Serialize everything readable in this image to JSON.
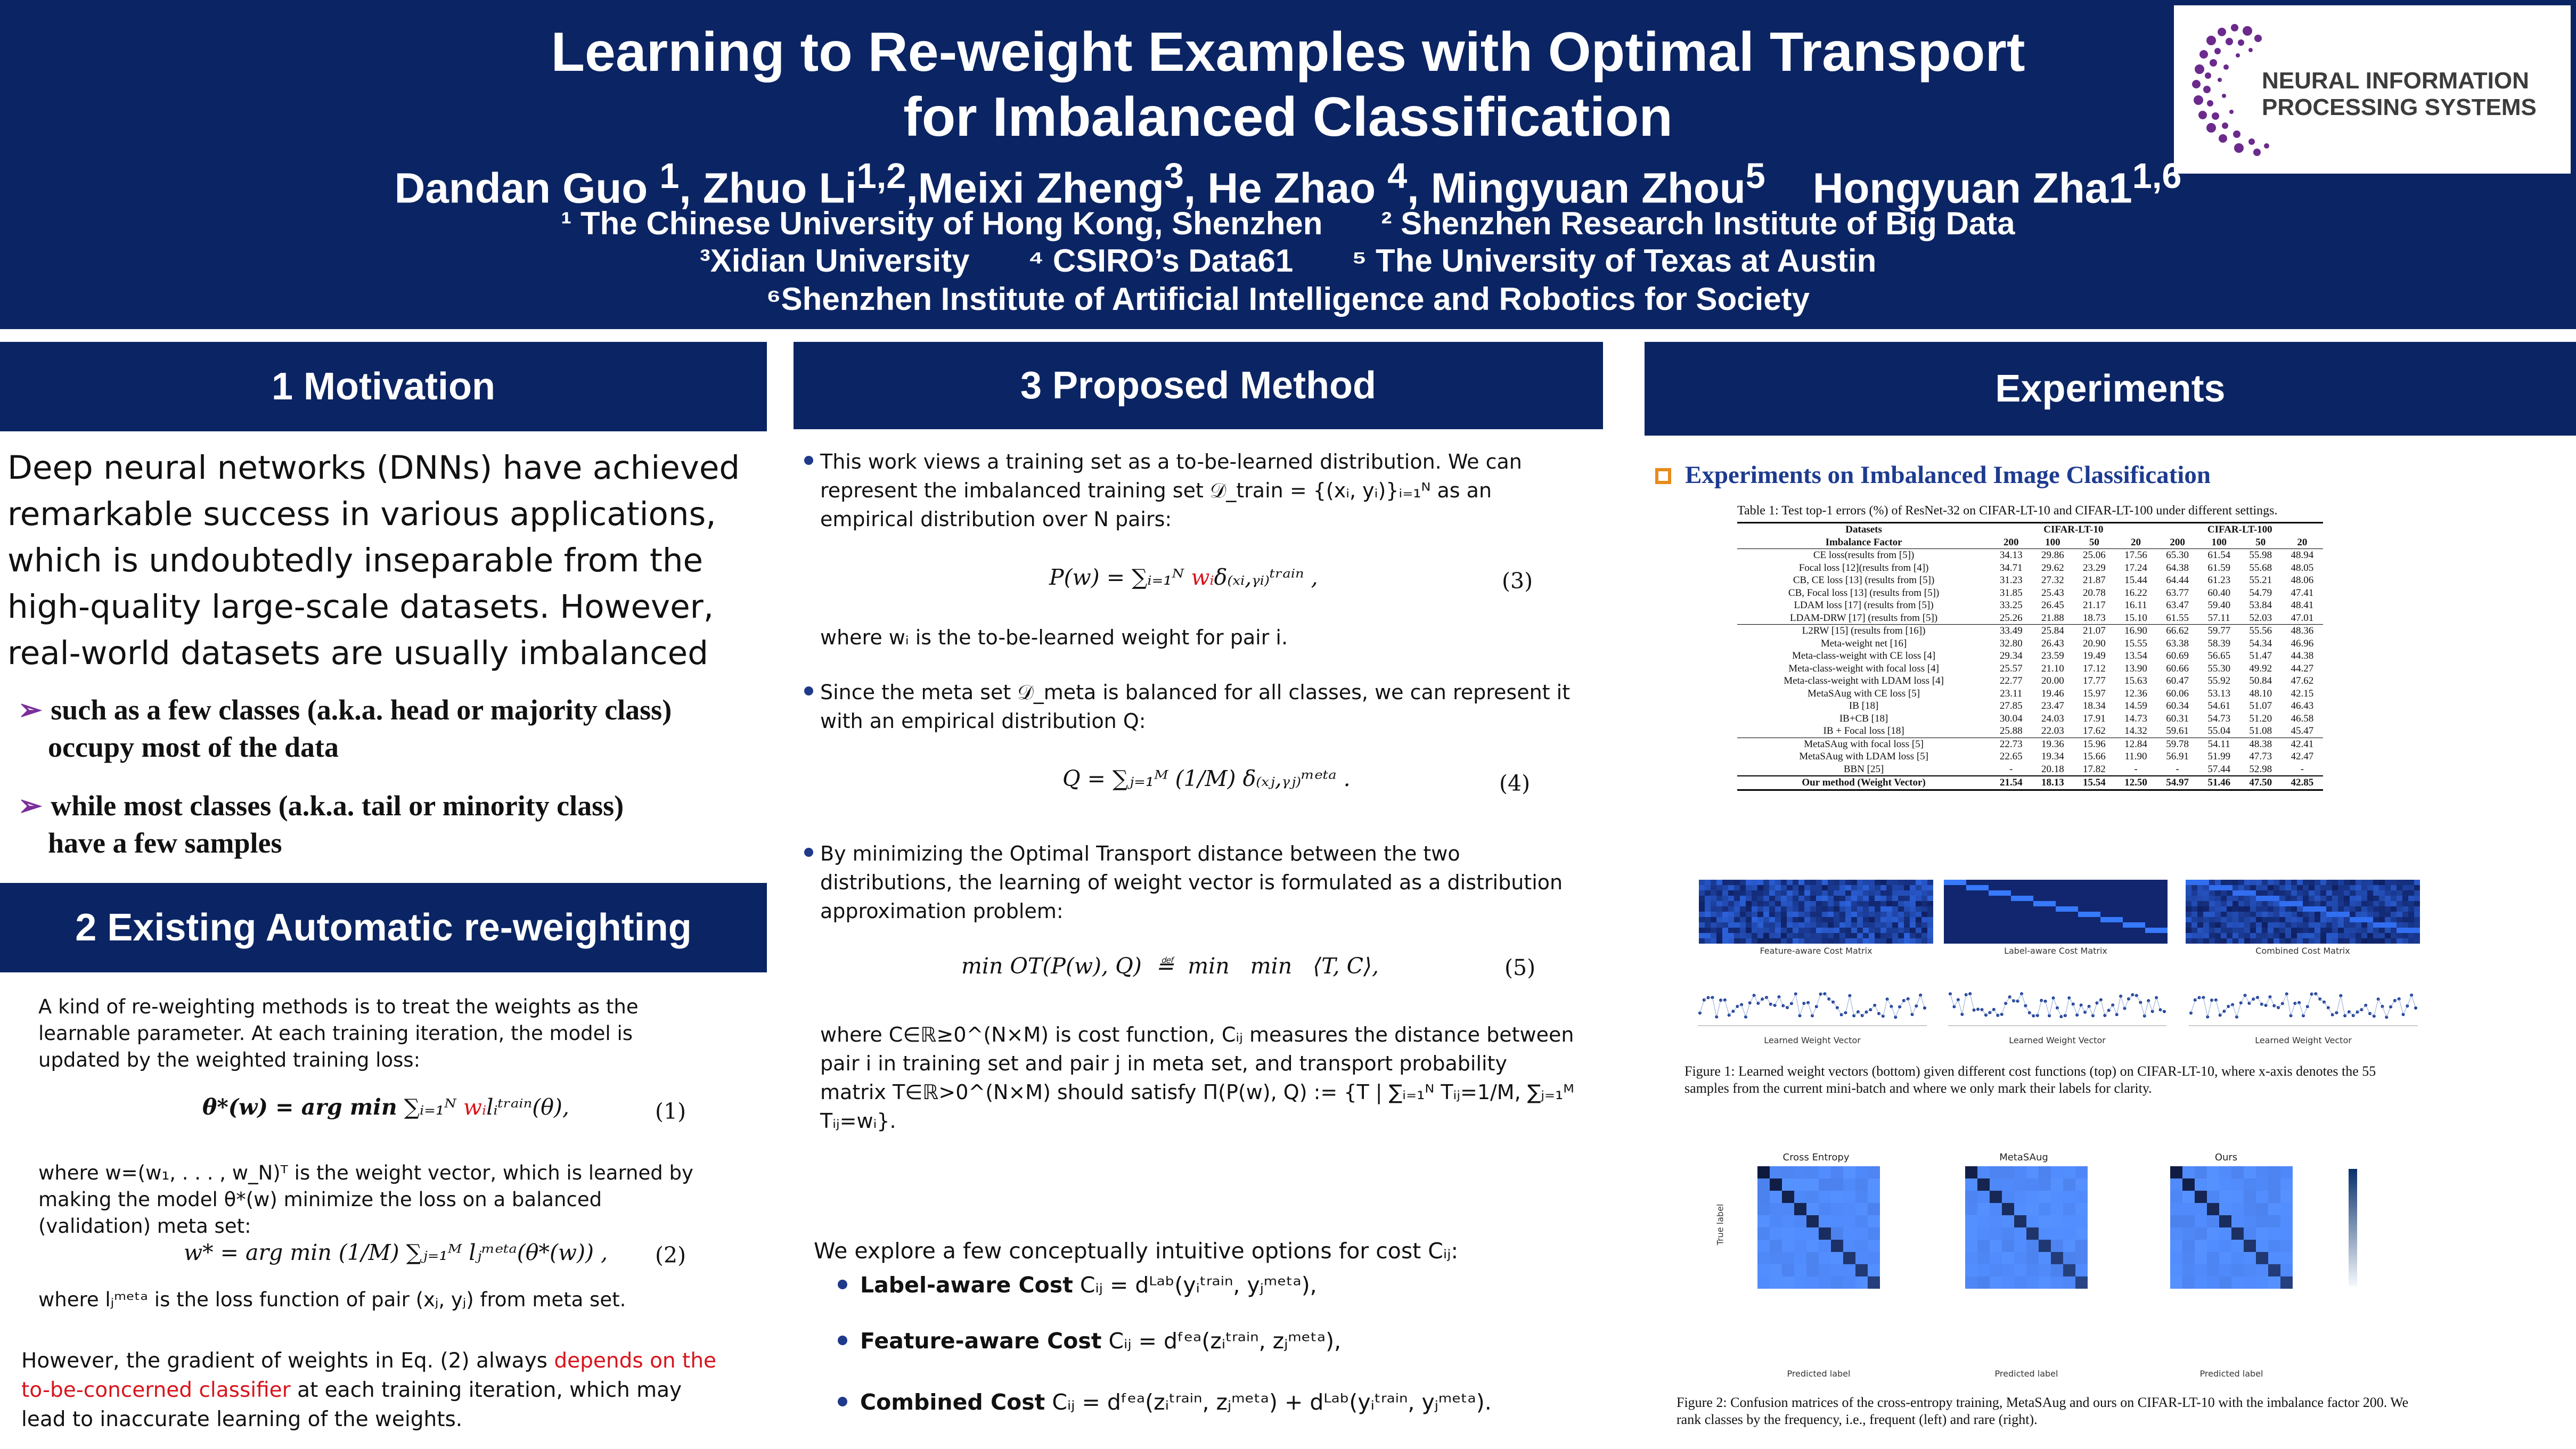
{
  "header": {
    "title_line1": "Learning to Re-weight Examples with Optimal Transport",
    "title_line2": "for Imbalanced Classification",
    "authors": [
      {
        "name": "Dandan Guo ",
        "sup": "1"
      },
      {
        "name": ", Zhuo Li",
        "sup": "1,2"
      },
      {
        "name": ",Meixi Zheng",
        "sup": "3"
      },
      {
        "name": ", He Zhao ",
        "sup": "4"
      },
      {
        "name": ", Mingyuan Zhou",
        "sup": "5"
      },
      {
        "name": "    Hongyuan Zha1",
        "sup": "1,6"
      }
    ],
    "affiliations": {
      "a1": "¹ The Chinese University of Hong Kong, Shenzhen",
      "a2": "² Shenzhen Research Institute of Big Data",
      "a3": "³Xidian University",
      "a4": "⁴ CSIRO’s Data61",
      "a5": "⁵ The University of Texas at Austin",
      "a6": "⁶Shenzhen Institute of Artificial Intelligence and Robotics for Society"
    },
    "logo_line1": "NEURAL INFORMATION",
    "logo_line2": "PROCESSING SYSTEMS",
    "colors": {
      "header_bg": "#0b2463",
      "logo_purple": "#6b2a8c",
      "highlight_red": "#d8141b",
      "bullet_blue": "#1f3a8a",
      "arrow_purple": "#7a2d9b",
      "subheading_orange": "#e88b1a"
    }
  },
  "motivation": {
    "heading": "1 Motivation",
    "paragraph": "Deep neural networks (DNNs) have achieved remarkable success in various applications, which is undoubtedly inseparable from the high-quality large-scale datasets. However, real-world datasets are usually imbalanced",
    "bullet1_line1": "such as a few classes (a.k.a. head or majority class)",
    "bullet1_line2": "occupy most of the data",
    "bullet2_line1": "while most classes (a.k.a. tail or minority class)",
    "bullet2_line2": "have a few samples"
  },
  "existing": {
    "heading": "2 Existing Automatic re-weighting",
    "para1": "A kind of re-weighting methods is to treat the weights as the learnable parameter. At each training iteration, the model is updated by the weighted training loss:",
    "eq1_left": "θ*(w) = arg min",
    "eq1_right": " ∑ᵢ₌₁ᴺ ",
    "eq1_w": "wᵢ",
    "eq1_tail": "lᵢᵗʳᵃⁱⁿ(θ),",
    "eq1_num": "(1)",
    "para2": "where w=(w₁, . . . , w_N)ᵀ is the weight vector, which is learned by making the model θ*(w) minimize the loss on a balanced (validation) meta set:",
    "eq2": "w* = arg min  (1/M) ∑ⱼ₌₁ᴹ lⱼᵐᵉᵗᵃ(θ*(w)) ,",
    "eq2_num": "(2)",
    "para3": "where lⱼᵐᵉᵗᵃ is the loss function of pair (xⱼ, yⱼ) from meta set.",
    "para4_a": "However, the gradient of weights in Eq. (2) always ",
    "para4_red": "depends on the to-be-concerned classifier",
    "para4_b": " at each training iteration, which may lead to inaccurate learning of the weights."
  },
  "method": {
    "heading": "3  Proposed Method",
    "b1": "This work views a training set as a to-be-learned distribution. We can represent the imbalanced training set 𝒟_train = {(xᵢ, yᵢ)}ᵢ₌₁ᴺ as an empirical distribution over N pairs:",
    "eq3_a": "P(w) = ∑ᵢ₌₁ᴺ ",
    "eq3_w": "wᵢ",
    "eq3_b": "δ₍ₓᵢ,ᵧᵢ₎ᵗʳᵃⁱⁿ ,",
    "eq3_num": "(3)",
    "b1b": "where wᵢ is the to-be-learned weight for pair i.",
    "b2": "Since the meta set 𝒟_meta  is balanced for all classes, we can represent it with an empirical distribution Q:",
    "eq4": "Q = ∑ⱼ₌₁ᴹ (1/M) δ₍ₓⱼ,ᵧⱼ₎ᵐᵉᵗᵃ .",
    "eq4_num": "(4)",
    "b3": "By minimizing the Optimal Transport distance between the two distributions, the learning of weight vector is formulated as a distribution approximation problem:",
    "eq5": "min OT(P(w), Q)  ≝  min   min   ⟨T, C⟩,",
    "eq5_num": "(5)",
    "b3b": "where C∈ℝ≥0^(N×M) is cost function, Cᵢⱼ measures the distance between pair i in training set and pair j in meta set, and transport probability matrix T∈ℝ>0^(N×M) should satisfy Π(P(w), Q) := {T | ∑ᵢ₌₁ᴺ Tᵢⱼ=1/M, ∑ⱼ₌₁ᴹ Tᵢⱼ=wᵢ}.",
    "explore": "We explore a few conceptually intuitive options for cost Cᵢⱼ:",
    "opt1_name": "Label-aware Cost",
    "opt1_eq": "Cᵢⱼ = dᴸᵃᵇ(yᵢᵗʳᵃⁱⁿ, yⱼᵐᵉᵗᵃ),",
    "opt2_name": "Feature-aware Cost",
    "opt2_eq": "Cᵢⱼ = dᶠᵉᵃ(zᵢᵗʳᵃⁱⁿ, zⱼᵐᵉᵗᵃ),",
    "opt3_name": "Combined Cost",
    "opt3_eq": "Cᵢⱼ = dᶠᵉᵃ(zᵢᵗʳᵃⁱⁿ, zⱼᵐᵉᵗᵃ) + dᴸᵃᵇ(yᵢᵗʳᵃⁱⁿ, yⱼᵐᵉᵗᵃ)."
  },
  "experiments": {
    "heading": "Experiments",
    "subheading": "Experiments on Imbalanced Image Classification",
    "table_caption": "Table 1: Test top-1 errors (%) of ResNet-32 on CIFAR-LT-10 and CIFAR-LT-100 under different settings.",
    "table_header1": [
      "Datasets",
      "CIFAR-LT-10",
      "CIFAR-LT-100"
    ],
    "table_header2": [
      "Imbalance Factor",
      "200",
      "100",
      "50",
      "20",
      "200",
      "100",
      "50",
      "20"
    ],
    "table_rows": [
      [
        "CE loss(results from [5])",
        "34.13",
        "29.86",
        "25.06",
        "17.56",
        "65.30",
        "61.54",
        "55.98",
        "48.94"
      ],
      [
        "Focal loss [12](results from [4])",
        "34.71",
        "29.62",
        "23.29",
        "17.24",
        "64.38",
        "61.59",
        "55.68",
        "48.05"
      ],
      [
        "CB, CE loss [13] (results from [5])",
        "31.23",
        "27.32",
        "21.87",
        "15.44",
        "64.44",
        "61.23",
        "55.21",
        "48.06"
      ],
      [
        "CB, Focal loss [13] (results from [5])",
        "31.85",
        "25.43",
        "20.78",
        "16.22",
        "63.77",
        "60.40",
        "54.79",
        "47.41"
      ],
      [
        "LDAM loss [17] (results from [5])",
        "33.25",
        "26.45",
        "21.17",
        "16.11",
        "63.47",
        "59.40",
        "53.84",
        "48.41"
      ],
      [
        "LDAM-DRW [17] (results from [5])",
        "25.26",
        "21.88",
        "18.73",
        "15.10",
        "61.55",
        "57.11",
        "52.03",
        "47.01"
      ],
      [
        "L2RW [15] (results from [16])",
        "33.49",
        "25.84",
        "21.07",
        "16.90",
        "66.62",
        "59.77",
        "55.56",
        "48.36"
      ],
      [
        "Meta-weight net [16]",
        "32.80",
        "26.43",
        "20.90",
        "15.55",
        "63.38",
        "58.39",
        "54.34",
        "46.96"
      ],
      [
        "Meta-class-weight with CE loss [4]",
        "29.34",
        "23.59",
        "19.49",
        "13.54",
        "60.69",
        "56.65",
        "51.47",
        "44.38"
      ],
      [
        "Meta-class-weight with focal loss [4]",
        "25.57",
        "21.10",
        "17.12",
        "13.90",
        "60.66",
        "55.30",
        "49.92",
        "44.27"
      ],
      [
        "Meta-class-weight with LDAM loss [4]",
        "22.77",
        "20.00",
        "17.77",
        "15.63",
        "60.47",
        "55.92",
        "50.84",
        "47.62"
      ],
      [
        "MetaSAug with CE loss [5]",
        "23.11",
        "19.46",
        "15.97",
        "12.36",
        "60.06",
        "53.13",
        "48.10",
        "42.15"
      ],
      [
        "IB [18]",
        "27.85",
        "23.47",
        "18.34",
        "14.59",
        "60.34",
        "54.61",
        "51.07",
        "46.43"
      ],
      [
        "IB+CB [18]",
        "30.04",
        "24.03",
        "17.91",
        "14.73",
        "60.31",
        "54.73",
        "51.20",
        "46.58"
      ],
      [
        "IB + Focal loss [18]",
        "25.88",
        "22.03",
        "17.62",
        "14.32",
        "59.61",
        "55.04",
        "51.08",
        "45.47"
      ],
      [
        "MetaSAug with focal loss [5]",
        "22.73",
        "19.36",
        "15.96",
        "12.84",
        "59.78",
        "54.11",
        "48.38",
        "42.41"
      ],
      [
        "MetaSAug with LDAM loss [5]",
        "22.65",
        "19.34",
        "15.66",
        "11.90",
        "56.91",
        "51.99",
        "47.73",
        "42.47"
      ],
      [
        "BBN [25]",
        "-",
        "20.18",
        "17.82",
        "-",
        "-",
        "57.44",
        "52.98",
        "-"
      ],
      [
        "Our method (Weight Vector)",
        "21.54",
        "18.13",
        "15.54",
        "12.50",
        "54.97",
        "51.46",
        "47.50",
        "42.85"
      ]
    ],
    "fig1_labels": {
      "feat": "Feature-aware Cost Matrix",
      "label": "Label-aware Cost Matrix",
      "comb": "Combined Cost Matrix",
      "lwv": "Learned Weight Vector"
    },
    "fig1_caption": "Figure 1: Learned weight vectors (bottom) given different cost functions (top) on CIFAR-LT-10, where x-axis denotes the 55 samples from the current mini-batch and where we only mark their labels for clarity.",
    "fig2_titles": [
      "Cross Entropy",
      "MetaSAug",
      "Ours"
    ],
    "fig2_xlabel": "Predicted label",
    "fig2_ylabel": "True label",
    "fig2_caption": "Figure 2: Confusion matrices of the cross-entropy training, MetaSAug and ours on CIFAR-LT-10 with the imbalance factor 200. We rank classes by the frequency, i.e., frequent (left) and rare (right)."
  }
}
